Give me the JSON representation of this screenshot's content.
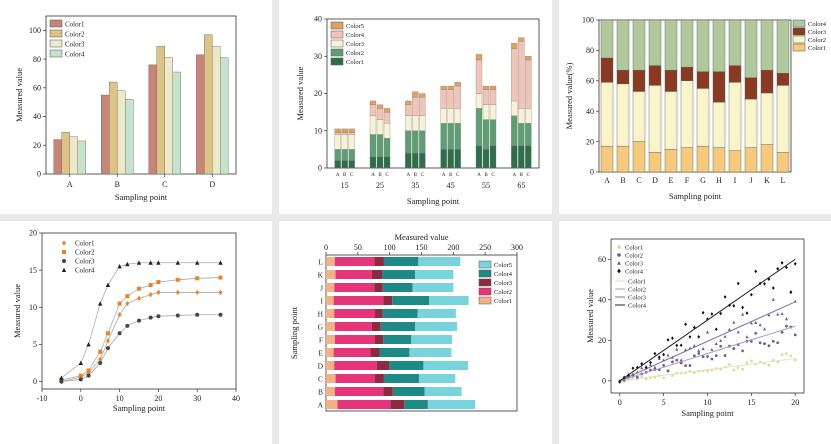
{
  "chart_data": [
    {
      "type": "bar",
      "xlabel": "Sampling point",
      "ylabel": "Measured value",
      "ylim": [
        0,
        110
      ],
      "yticks": [
        0,
        20,
        40,
        60,
        80,
        100
      ],
      "categories": [
        "A",
        "B",
        "C",
        "D"
      ],
      "legend_position": "top-left",
      "series": [
        {
          "name": "Color1",
          "color": "#c9847a",
          "values": [
            24,
            55,
            76,
            83
          ]
        },
        {
          "name": "Color2",
          "color": "#ddc486",
          "values": [
            29,
            64,
            89,
            97
          ]
        },
        {
          "name": "Color3",
          "color": "#ede8c8",
          "values": [
            26,
            58,
            81,
            89
          ]
        },
        {
          "name": "Color4",
          "color": "#c5e3c8",
          "values": [
            23,
            52,
            71,
            81
          ]
        }
      ]
    },
    {
      "type": "bar",
      "stacked": true,
      "xlabel": "Sampling point",
      "ylabel": "Measured value",
      "ylim": [
        0,
        40
      ],
      "yticks": [
        0,
        10,
        20,
        30,
        40
      ],
      "groups": [
        "15",
        "25",
        "35",
        "45",
        "55",
        "65"
      ],
      "subcategories": [
        "A",
        "B",
        "C"
      ],
      "legend_position": "top-left",
      "series": [
        {
          "name": "Color5",
          "color": "#e0a060",
          "values": [
            [
              1,
              1,
              1
            ],
            [
              1,
              1,
              1
            ],
            [
              1,
              1.5,
              1
            ],
            [
              1,
              1,
              1
            ],
            [
              1.5,
              1,
              1
            ],
            [
              1.5,
              1,
              1
            ]
          ]
        },
        {
          "name": "Color4",
          "color": "#f2c4b8",
          "values": [
            [
              0.5,
              0.5,
              0.5
            ],
            [
              3,
              3,
              3
            ],
            [
              3,
              5,
              5
            ],
            [
              5,
              5,
              6
            ],
            [
              9,
              4,
              4
            ],
            [
              14,
              18,
              13
            ]
          ]
        },
        {
          "name": "Color3",
          "color": "#f7f2d7",
          "values": [
            [
              4,
              4,
              4
            ],
            [
              5,
              4,
              4
            ],
            [
              4,
              4,
              4
            ],
            [
              4,
              4,
              4
            ],
            [
              4,
              4,
              4
            ],
            [
              4,
              4,
              4
            ]
          ]
        },
        {
          "name": "Color2",
          "color": "#5e9e74",
          "values": [
            [
              3,
              3,
              3
            ],
            [
              6,
              6,
              5
            ],
            [
              6,
              6,
              6
            ],
            [
              7,
              7,
              7
            ],
            [
              10,
              8,
              7
            ],
            [
              8,
              6,
              6
            ]
          ]
        },
        {
          "name": "Color1",
          "color": "#2f6e4c",
          "values": [
            [
              2,
              2,
              2
            ],
            [
              3,
              3,
              3
            ],
            [
              4,
              4,
              4
            ],
            [
              5,
              5,
              5
            ],
            [
              6,
              5,
              6
            ],
            [
              6,
              6,
              6
            ]
          ]
        }
      ]
    },
    {
      "type": "bar",
      "stacked": true,
      "xlabel": "Sampling point",
      "ylabel": "Measured value(%)",
      "ylim": [
        0,
        100
      ],
      "yticks": [
        0,
        20,
        40,
        60,
        80,
        100
      ],
      "categories": [
        "A",
        "B",
        "C",
        "D",
        "E",
        "F",
        "G",
        "H",
        "I",
        "J",
        "K",
        "L"
      ],
      "legend_position": "top-right",
      "series": [
        {
          "name": "Color1",
          "color": "#f7c97c",
          "values": [
            17,
            17,
            20,
            13,
            15,
            16,
            17,
            16,
            14,
            16,
            18,
            13
          ]
        },
        {
          "name": "Color2",
          "color": "#f9f4c9",
          "values": [
            42,
            41,
            33,
            44,
            38,
            44,
            38,
            30,
            45,
            32,
            34,
            44
          ]
        },
        {
          "name": "Color3",
          "color": "#8b3a22",
          "values": [
            16,
            9,
            14,
            13,
            14,
            9,
            11,
            20,
            11,
            14,
            15,
            8
          ]
        },
        {
          "name": "Color4",
          "color": "#afc99c",
          "values": [
            25,
            33,
            33,
            30,
            33,
            31,
            34,
            34,
            30,
            38,
            33,
            35
          ]
        }
      ]
    },
    {
      "type": "line",
      "xlabel": "Sampling point",
      "ylabel": "Measured value",
      "xlim": [
        -10,
        40
      ],
      "ylim": [
        -1,
        20
      ],
      "xticks": [
        -10,
        0,
        10,
        20,
        30,
        40
      ],
      "yticks": [
        0,
        5,
        10,
        15,
        20
      ],
      "legend_position": "top-left",
      "series": [
        {
          "name": "Color1",
          "color": "#f57f20",
          "marker": "diamond",
          "x": [
            -5,
            0,
            2,
            5,
            7,
            10,
            12,
            15,
            18,
            20,
            25,
            30,
            36
          ],
          "y": [
            0,
            0.6,
            1.2,
            3,
            5.5,
            9,
            10.5,
            11.2,
            11.7,
            12,
            12,
            12,
            12
          ]
        },
        {
          "name": "Color2",
          "color": "#f57f20",
          "marker": "square",
          "x": [
            -5,
            0,
            2,
            5,
            7,
            10,
            12,
            15,
            18,
            20,
            25,
            30,
            36
          ],
          "y": [
            0.2,
            0.8,
            1.5,
            4,
            6.5,
            10.5,
            11.5,
            12.5,
            13,
            13.4,
            13.7,
            13.9,
            14
          ]
        },
        {
          "name": "Color3",
          "color": "#444444",
          "marker": "circle",
          "x": [
            -5,
            0,
            2,
            5,
            7,
            10,
            12,
            15,
            18,
            20,
            25,
            30,
            36
          ],
          "y": [
            0,
            0.3,
            0.8,
            2.5,
            4.5,
            6.5,
            7.5,
            8.2,
            8.6,
            8.8,
            8.9,
            9,
            9
          ]
        },
        {
          "name": "Color4",
          "color": "#222222",
          "marker": "triangle",
          "x": [
            -5,
            0,
            2,
            5,
            7,
            10,
            12,
            15,
            18,
            20,
            25,
            30,
            36
          ],
          "y": [
            0.5,
            2.5,
            5,
            10.5,
            13,
            15.5,
            15.8,
            16,
            16,
            16,
            16,
            16,
            16
          ]
        }
      ]
    },
    {
      "type": "bar",
      "stacked": true,
      "orientation": "horizontal",
      "xlabel": "Measured value",
      "ylabel": "Sampling point",
      "xlim": [
        0,
        300
      ],
      "xticks": [
        0,
        50,
        100,
        150,
        200,
        250,
        300
      ],
      "categories": [
        "A",
        "B",
        "C",
        "D",
        "E",
        "F",
        "G",
        "H",
        "I",
        "J",
        "K",
        "L"
      ],
      "legend_position": "right",
      "series": [
        {
          "name": "Color1",
          "color": "#f4b183",
          "values": [
            18,
            14,
            15,
            13,
            12,
            14,
            14,
            13,
            12,
            13,
            15,
            14
          ]
        },
        {
          "name": "Color2",
          "color": "#e6347a",
          "values": [
            83,
            76,
            62,
            67,
            58,
            63,
            58,
            64,
            78,
            63,
            57,
            62
          ]
        },
        {
          "name": "Color3",
          "color": "#8e2a3f",
          "values": [
            22,
            15,
            14,
            19,
            14,
            13,
            14,
            12,
            14,
            13,
            16,
            15
          ]
        },
        {
          "name": "Color4",
          "color": "#1e8a85",
          "values": [
            37,
            50,
            55,
            54,
            47,
            44,
            54,
            55,
            58,
            47,
            52,
            54
          ]
        },
        {
          "name": "Color5",
          "color": "#78d3dc",
          "values": [
            74,
            58,
            57,
            70,
            66,
            64,
            66,
            60,
            62,
            64,
            60,
            66
          ]
        }
      ]
    },
    {
      "type": "scatter",
      "xlabel": "Sampling point",
      "ylabel": "Measured value",
      "xlim": [
        -1,
        21
      ],
      "ylim": [
        -6,
        70
      ],
      "xticks": [
        0,
        5,
        10,
        15,
        20
      ],
      "yticks": [
        0,
        20,
        40,
        60
      ],
      "legend_position": "top-left",
      "series": [
        {
          "name": "Color1",
          "color": "#ddd7a3",
          "marker": "circle",
          "slope": 0.55
        },
        {
          "name": "Color2",
          "color": "#6f5a9c",
          "marker": "circle",
          "slope": 1.35
        },
        {
          "name": "Color3",
          "color": "#6f5a9c",
          "marker": "triangle",
          "slope": 1.95
        },
        {
          "name": "Color4",
          "color": "#111111",
          "marker": "diamond",
          "slope": 3.0
        }
      ]
    }
  ]
}
